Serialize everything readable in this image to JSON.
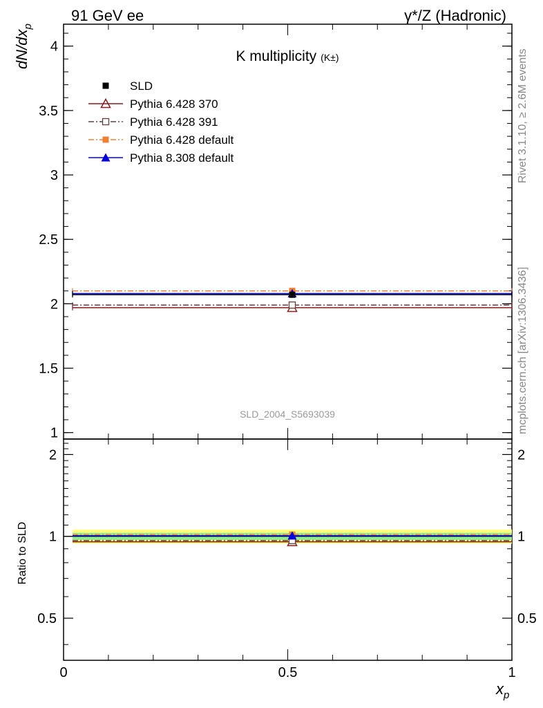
{
  "header": {
    "left": "91 GeV ee",
    "right": "γ*/Z (Hadronic)"
  },
  "side_labels": {
    "rivet": "Rivet 3.1.10, ≥ 2.6M events",
    "mcplots": "mcplots.cern.ch [arXiv:1306.3436]"
  },
  "chart_data": {
    "type": "scatter",
    "title": "K multiplicity",
    "title_suffix": "(K±)",
    "analysis_id": "SLD_2004_S5693039",
    "ylabel": "dN/dx",
    "ylabel_sub": "p",
    "xlabel": "x",
    "xlabel_sub": "p",
    "xlim": [
      0,
      1
    ],
    "ylim": [
      0.95,
      4.17
    ],
    "x_ticks": [
      "0",
      "0.5",
      "1"
    ],
    "y_ticks": [
      "1",
      "1.5",
      "2",
      "2.5",
      "3",
      "3.5",
      "4"
    ],
    "legend_position": "top-left",
    "series": [
      {
        "name": "SLD",
        "color": "#000000",
        "marker": "square-filled",
        "line": "none",
        "points": [
          {
            "x": 0.51,
            "y": 2.07,
            "xerr": [
              0.49,
              0.49
            ]
          }
        ]
      },
      {
        "name": "Pythia 6.428 370",
        "color": "#8b1a1a",
        "marker": "triangle-open",
        "line": "solid",
        "points": [
          {
            "x": 0.51,
            "y": 1.97,
            "xerr": [
              0.49,
              0.49
            ]
          }
        ]
      },
      {
        "name": "Pythia 6.428 391",
        "color": "#6b3a3a",
        "marker": "square-open",
        "line": "dashdot",
        "points": [
          {
            "x": 0.51,
            "y": 1.99,
            "xerr": [
              0.49,
              0.49
            ]
          }
        ]
      },
      {
        "name": "Pythia 6.428 default",
        "color": "#f08030",
        "marker": "square-filled",
        "line": "dashdot",
        "points": [
          {
            "x": 0.51,
            "y": 2.1,
            "xerr": [
              0.49,
              0.49
            ]
          }
        ]
      },
      {
        "name": "Pythia 8.308 default",
        "color": "#0000dd",
        "marker": "triangle-filled",
        "line": "solid",
        "points": [
          {
            "x": 0.51,
            "y": 2.08,
            "xerr": [
              0.49,
              0.49
            ]
          }
        ]
      }
    ],
    "ratio": {
      "ylabel": "Ratio to SLD",
      "ylim": [
        0.35,
        2.28
      ],
      "y_ticks": [
        "0.5",
        "1",
        "2"
      ],
      "band_outer": [
        0.94,
        1.06
      ],
      "band_inner": [
        0.97,
        1.03
      ],
      "band_outer_color": "#ffff80",
      "band_inner_color": "#90ee90",
      "values": [
        {
          "series": "Pythia 6.428 370",
          "y": 0.955
        },
        {
          "series": "Pythia 6.428 391",
          "y": 0.965
        },
        {
          "series": "Pythia 6.428 default",
          "y": 1.015
        },
        {
          "series": "Pythia 8.308 default",
          "y": 1.005
        }
      ]
    }
  }
}
